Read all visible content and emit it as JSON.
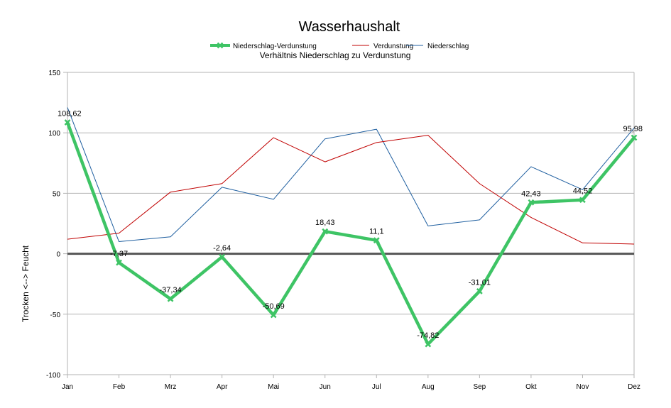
{
  "chart_data": {
    "type": "line",
    "title": "Wasserhaushalt",
    "subtitle": "Verhältnis Niederschlag zu Verdunstung",
    "xlabel": "",
    "ylabel": "Trocken <--> Feucht",
    "ylim": [
      -100,
      150
    ],
    "yticks": [
      -100,
      -50,
      0,
      50,
      100,
      150
    ],
    "grid": true,
    "legend_position": "top-center",
    "categories": [
      "Jan",
      "Feb",
      "Mrz",
      "Apr",
      "Mai",
      "Jun",
      "Jul",
      "Aug",
      "Sep",
      "Okt",
      "Nov",
      "Dez"
    ],
    "series": [
      {
        "name": "Niederschlag-Verdunstung",
        "color": "#3ec465",
        "values": [
          108.62,
          -7.37,
          -37.34,
          -2.64,
          -50.69,
          18.43,
          11.1,
          -74.82,
          -31.01,
          42.43,
          44.52,
          95.98
        ],
        "labels": [
          "108,62",
          "-7,37",
          "-37,34",
          "-2,64",
          "-50,69",
          "18,43",
          "11,1",
          "-74,82",
          "-31,01",
          "42,43",
          "44,52",
          "95,98"
        ]
      },
      {
        "name": "Verdunstung",
        "color": "#c00000",
        "values": [
          12,
          17,
          51,
          58,
          96,
          76,
          92,
          98,
          58,
          30,
          9,
          8
        ]
      },
      {
        "name": "Niederschlag",
        "color": "#1f5fa0",
        "values": [
          121,
          10,
          14,
          55,
          45,
          95,
          103,
          23,
          28,
          72,
          53,
          104
        ]
      }
    ]
  }
}
